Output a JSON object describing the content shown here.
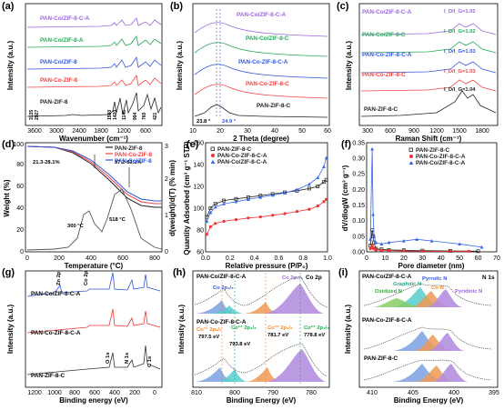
{
  "chart_data": [
    {
      "panel": "(a)",
      "type": "line",
      "xlabel": "Wavenumber (cm⁻¹)",
      "ylabel": "Intensity (a.u.)",
      "xlim": [
        4000,
        400
      ],
      "xticks": [
        "3600",
        "3000",
        "2400",
        "1800",
        "1200",
        "600"
      ],
      "series": [
        {
          "name": "PAN-Co/ZIF-8-C-A",
          "color": "#9966dd"
        },
        {
          "name": "PAN-Co/ZIF-8-A",
          "color": "#22aa55"
        },
        {
          "name": "PAN-Co/ZIF-8",
          "color": "#3355dd"
        },
        {
          "name": "PAN-Co-ZIF-8",
          "color": "#ee4444"
        },
        {
          "name": "PAN-ZIF-8",
          "color": "#222222"
        }
      ],
      "peaks": [
        "3135",
        "2927",
        "1580",
        "1420",
        "1146",
        "994",
        "760",
        "421"
      ]
    },
    {
      "panel": "(b)",
      "type": "line",
      "xlabel": "2 Theta (degree)",
      "ylabel": "Intensity (a.u.)",
      "xlim": [
        10,
        60
      ],
      "xticks": [
        "10",
        "20",
        "30",
        "40",
        "50",
        "60"
      ],
      "series": [
        {
          "name": "PAN-Co/ZIF-8-C-A",
          "color": "#9966dd"
        },
        {
          "name": "PAN-Co/ZIF-8-C",
          "color": "#22aa55"
        },
        {
          "name": "PAN-Co-ZIF-8-C-A",
          "color": "#3355dd"
        },
        {
          "name": "PAN-Co-ZIF-8-C",
          "color": "#ee4444"
        },
        {
          "name": "PAN-ZIF-8-C",
          "color": "#222222"
        }
      ],
      "annotations": [
        "23.8 °",
        "24.9 °"
      ]
    },
    {
      "panel": "(c)",
      "type": "line",
      "xlabel": "Raman Shift (cm⁻¹)",
      "ylabel": "Intensity (a.u.)",
      "xlim": [
        200,
        2000
      ],
      "xticks": [
        "300",
        "600",
        "900",
        "1200",
        "1500",
        "1800"
      ],
      "series": [
        {
          "name": "PAN-Co/ZIF-8-C-A",
          "color": "#9966dd",
          "ratio": "I_D/I_G=1.02"
        },
        {
          "name": "PAN-Co/ZIF-8-C",
          "color": "#22aa55",
          "ratio": "I_D/I_G=1.02"
        },
        {
          "name": "PAN-Co-ZIF-8-C-A",
          "color": "#3355dd",
          "ratio": "I_D/I_G=1.03"
        },
        {
          "name": "PAN-Co-ZIF-8-C",
          "color": "#ee4444",
          "ratio": "I_D/I_G=1.03"
        },
        {
          "name": "PAN-ZIF-8-C",
          "color": "#222222",
          "ratio": "I_D/I_G=1.04"
        }
      ]
    },
    {
      "panel": "(d)",
      "type": "line",
      "xlabel": "Temperature (°C)",
      "ylabel": "Weight (%)",
      "ylabel2": "d(weight)/d(T) (% min)",
      "xlim": [
        0,
        900
      ],
      "xticks": [
        "0",
        "200",
        "400",
        "600",
        "800"
      ],
      "ylim": [
        0,
        100
      ],
      "yticks": [
        "0",
        "10",
        "20",
        "30",
        "40",
        "50",
        "60",
        "70",
        "80",
        "90",
        "100"
      ],
      "ylim2": [
        0,
        3
      ],
      "yticks2": [
        "0",
        "1",
        "2",
        "3"
      ],
      "series": [
        {
          "name": "PAN-ZIF-8",
          "color": "#222222"
        },
        {
          "name": "PAN-Co-ZIF-8",
          "color": "#ee4444"
        },
        {
          "name": "PAN-Co/ZIF-8",
          "color": "#3355dd"
        }
      ],
      "annotations": [
        "21.3-28.1%",
        "57.2-63.1%",
        "300 °C",
        "518 °C"
      ]
    },
    {
      "panel": "(e)",
      "type": "line",
      "xlabel": "Relative pressure (P/P₀)",
      "ylabel": "Quantity Adsorbed (cm³ g⁻¹ STP)",
      "xlim": [
        0,
        1
      ],
      "xticks": [
        "0.0",
        "0.2",
        "0.4",
        "0.6",
        "0.8",
        "1.0"
      ],
      "ylim": [
        60,
        160
      ],
      "yticks": [
        "60",
        "80",
        "100",
        "120",
        "140",
        "160"
      ],
      "series": [
        {
          "name": "PAN-ZIF-8-C",
          "color": "#222222",
          "marker": "square",
          "x": [
            0.01,
            0.04,
            0.08,
            0.15,
            0.25,
            0.35,
            0.45,
            0.55,
            0.65,
            0.75,
            0.85,
            0.92,
            0.97,
            0.99
          ],
          "y": [
            92,
            100,
            104,
            107,
            108.5,
            110,
            111.5,
            113,
            114.5,
            116,
            118,
            120,
            124,
            126
          ]
        },
        {
          "name": "PAN-Co-ZIF-8-C-A",
          "color": "#ee3333",
          "marker": "circle",
          "x": [
            0.01,
            0.04,
            0.08,
            0.15,
            0.25,
            0.35,
            0.45,
            0.55,
            0.65,
            0.75,
            0.85,
            0.92,
            0.97,
            0.99
          ],
          "y": [
            76,
            83,
            86,
            88,
            89.5,
            91,
            92,
            93.5,
            95,
            97,
            99,
            102,
            106,
            108
          ]
        },
        {
          "name": "PAN-Co/ZIF-8-C-A",
          "color": "#3366ee",
          "marker": "triangle",
          "x": [
            0.01,
            0.04,
            0.08,
            0.15,
            0.25,
            0.35,
            0.45,
            0.55,
            0.65,
            0.75,
            0.85,
            0.92,
            0.97,
            0.99
          ],
          "y": [
            88,
            96,
            101,
            104,
            106,
            108,
            110,
            112,
            114,
            117,
            122,
            128,
            138,
            146
          ]
        }
      ]
    },
    {
      "panel": "(f)",
      "type": "line",
      "xlabel": "Pore diameter (nm)",
      "ylabel": "dV/dlogW (cm³ g⁻¹)",
      "xlim": [
        0,
        70
      ],
      "xticks": [
        "0",
        "10",
        "20",
        "30",
        "40",
        "50",
        "60",
        "70"
      ],
      "ylim": [
        0,
        0.35
      ],
      "yticks": [
        "0.00",
        "0.05",
        "0.10",
        "0.15",
        "0.20",
        "0.25",
        "0.30",
        "0.35"
      ],
      "series": [
        {
          "name": "PAN-ZIF-8-C",
          "color": "#222222",
          "marker": "square",
          "x": [
            2,
            3,
            3.5,
            4,
            5,
            8,
            12,
            20,
            30,
            45,
            60
          ],
          "y": [
            0.02,
            0.07,
            0.05,
            0.03,
            0.01,
            0.008,
            0.006,
            0.005,
            0.004,
            0.003,
            0.002
          ]
        },
        {
          "name": "PAN-Co-ZIF-8-C-A",
          "color": "#ee3333",
          "marker": "circle",
          "x": [
            2,
            3,
            3.5,
            4,
            5,
            8,
            12,
            20,
            30,
            45,
            55
          ],
          "y": [
            0.01,
            0.02,
            0.012,
            0.01,
            0.006,
            0.005,
            0.004,
            0.003,
            0.002,
            0.002,
            0.002
          ]
        },
        {
          "name": "PAN-Co/ZIF-8-C-A",
          "color": "#3366ee",
          "marker": "triangle",
          "x": [
            2,
            3,
            3.5,
            4,
            5,
            8,
            12,
            20,
            27,
            35,
            50,
            62
          ],
          "y": [
            0.04,
            0.33,
            0.12,
            0.05,
            0.03,
            0.025,
            0.03,
            0.035,
            0.04,
            0.035,
            0.025,
            0.015
          ]
        }
      ]
    },
    {
      "panel": "(g)",
      "type": "line",
      "xlabel": "Binding energy (eV)",
      "ylabel": "Intensity (a.u.)",
      "xlim": [
        1350,
        0
      ],
      "xticks": [
        "1200",
        "1000",
        "800",
        "600",
        "400",
        "200",
        "0"
      ],
      "series": [
        {
          "name": "PAN-Co/ZIF-8-C-A",
          "color": "#3355dd"
        },
        {
          "name": "PAN-Co-ZIF-8-C-A",
          "color": "#ee3333"
        },
        {
          "name": "PAN-ZIF-8-C",
          "color": "#333333"
        }
      ],
      "annotations": [
        "Zn 2p",
        "Co 2p",
        "O 1s",
        "N 1s",
        "C 1s"
      ]
    },
    {
      "panel": "(h)",
      "type": "line",
      "xlabel": "Binding Energy (eV)",
      "ylabel": "Intensity (a.u.)",
      "xlim": [
        810,
        775
      ],
      "xticks": [
        "810",
        "800",
        "790",
        "780"
      ],
      "series": [
        {
          "name": "PAN-Co/ZIF-8-C-A",
          "color": "#333333"
        },
        {
          "name": "PAN-Co-ZIF-8-C-A",
          "color": "#333333"
        }
      ],
      "annotations": [
        "Co 2p",
        "Co 2p₃/₂",
        "Co 2p₁/₂",
        "Co³⁺ 2p₁/₂",
        "Co²⁺ 2p₁/₂",
        "Co²⁺ 2p₃/₂",
        "Co³⁺ 2p₃/₂",
        "797.5 eV",
        "793.8 eV",
        "781.7 eV",
        "778.8 eV"
      ]
    },
    {
      "panel": "(i)",
      "type": "line",
      "xlabel": "Binding Energy (eV)",
      "ylabel": "Intensity (a.u.)",
      "xlim": [
        410,
        393
      ],
      "xticks": [
        "410",
        "405",
        "400",
        "395"
      ],
      "series": [
        {
          "name": "PAN-Co/ZIF-8-C-A",
          "color": "#333333"
        },
        {
          "name": "PAN-Co-ZIF-8-C-A",
          "color": "#333333"
        },
        {
          "name": "PAN-ZIF-8-C",
          "color": "#333333"
        }
      ],
      "annotations": [
        "N 1s",
        "Pyrrolic N",
        "Graphitic N",
        "Co-N",
        "Oxidized N",
        "Pyridinic N"
      ]
    }
  ]
}
